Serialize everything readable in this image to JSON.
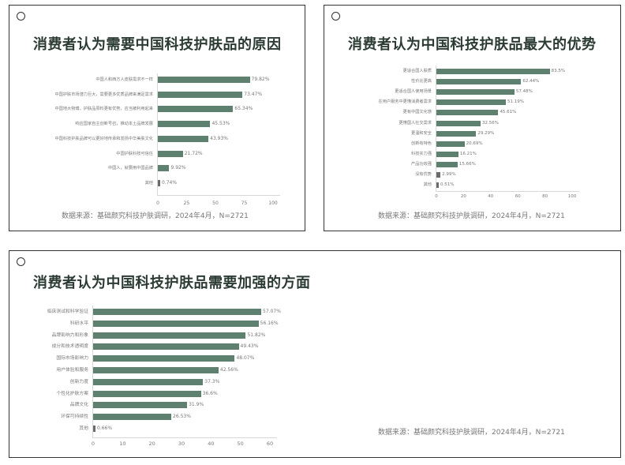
{
  "chart_data": [
    {
      "type": "bar",
      "orientation": "horizontal",
      "title": "消费者认为需要中国科技护肤品的原因",
      "categories": [
        "中国人和西方人皮肤需求不一样",
        "中国护肤市场潜力巨大，需要更多优质品牌来满足需求",
        "中国地大物博，护肤品原料更有优势，应当被利用起来",
        "响应国家自主创新号召，推动本土品牌发展",
        "中国科技护肤品牌可以更好地传承和发扬中华美肤文化",
        "中国护肤科技可信任",
        "中国人，就要用中国品牌",
        "其他"
      ],
      "values": [
        79.82,
        73.47,
        65.34,
        45.53,
        43.93,
        21.72,
        9.92,
        0.74
      ],
      "value_labels": [
        "79.82%",
        "73.47%",
        "65.34%",
        "45.53%",
        "43.93%",
        "21.72%",
        "9.92%",
        "0.74%"
      ],
      "xticks": [
        "0",
        "25",
        "50",
        "75",
        "100"
      ],
      "xlim": [
        0,
        100
      ],
      "xlabel": "",
      "ylabel": "",
      "grid": false,
      "source": "数据来源：基础颜究科技护肤调研，2024年4月，N=2721"
    },
    {
      "type": "bar",
      "orientation": "horizontal",
      "title": "消费者认为中国科技护肤品最大的优势",
      "categories": [
        "更适合国人肤质",
        "性价比更高",
        "更适合国人使用场景",
        "在用户服务中更懂消费者需求",
        "更有中国文化感",
        "更懂国人社交需求",
        "更温和安全",
        "创新有特色",
        "科技实力强",
        "产品功效强",
        "没有优势",
        "其他"
      ],
      "values": [
        83.5,
        62.44,
        57.48,
        51.19,
        45.61,
        32.56,
        29.29,
        20.69,
        16.21,
        15.66,
        2.99,
        0.51
      ],
      "value_labels": [
        "83.5%",
        "62.44%",
        "57.48%",
        "51.19%",
        "45.61%",
        "32.56%",
        "29.29%",
        "20.69%",
        "16.21%",
        "15.66%",
        "2.99%",
        "0.51%"
      ],
      "xticks": [
        "0",
        "20",
        "40",
        "60",
        "80",
        "100"
      ],
      "xlim": [
        0,
        100
      ],
      "xlabel": "",
      "ylabel": "",
      "grid": false,
      "source": "数据来源：基础颜究科技护肤调研，2024年4月，N=2721"
    },
    {
      "type": "bar",
      "orientation": "horizontal",
      "title": "消费者认为中国科技护肤品需要加强的方面",
      "categories": [
        "临床测试和科学验证",
        "科研水平",
        "品牌影响力和形象",
        "成分和技术透明度",
        "国际市场影响力",
        "用户体验和服务",
        "创新力度",
        "个性化护肤方案",
        "品牌文化",
        "环保可持续性",
        "其他"
      ],
      "values": [
        57.07,
        56.16,
        51.82,
        49.43,
        48.07,
        42.56,
        37.3,
        36.6,
        31.9,
        26.53,
        0.66
      ],
      "value_labels": [
        "57.07%",
        "56.16%",
        "51.82%",
        "49.43%",
        "48.07%",
        "42.56%",
        "37.3%",
        "36.6%",
        "31.9%",
        "26.53%",
        "0.66%"
      ],
      "xticks": [
        "0",
        "10",
        "20",
        "30",
        "40",
        "50",
        "60"
      ],
      "xlim": [
        0,
        60
      ],
      "xlabel": "",
      "ylabel": "",
      "grid": false,
      "source": "数据来源：基础颜究科技护肤调研，2024年4月，N=2721"
    }
  ],
  "colors": {
    "bar": "#5e806f",
    "bar_small": "#6b6b6b",
    "title": "#2b3b33",
    "text": "#777777"
  }
}
